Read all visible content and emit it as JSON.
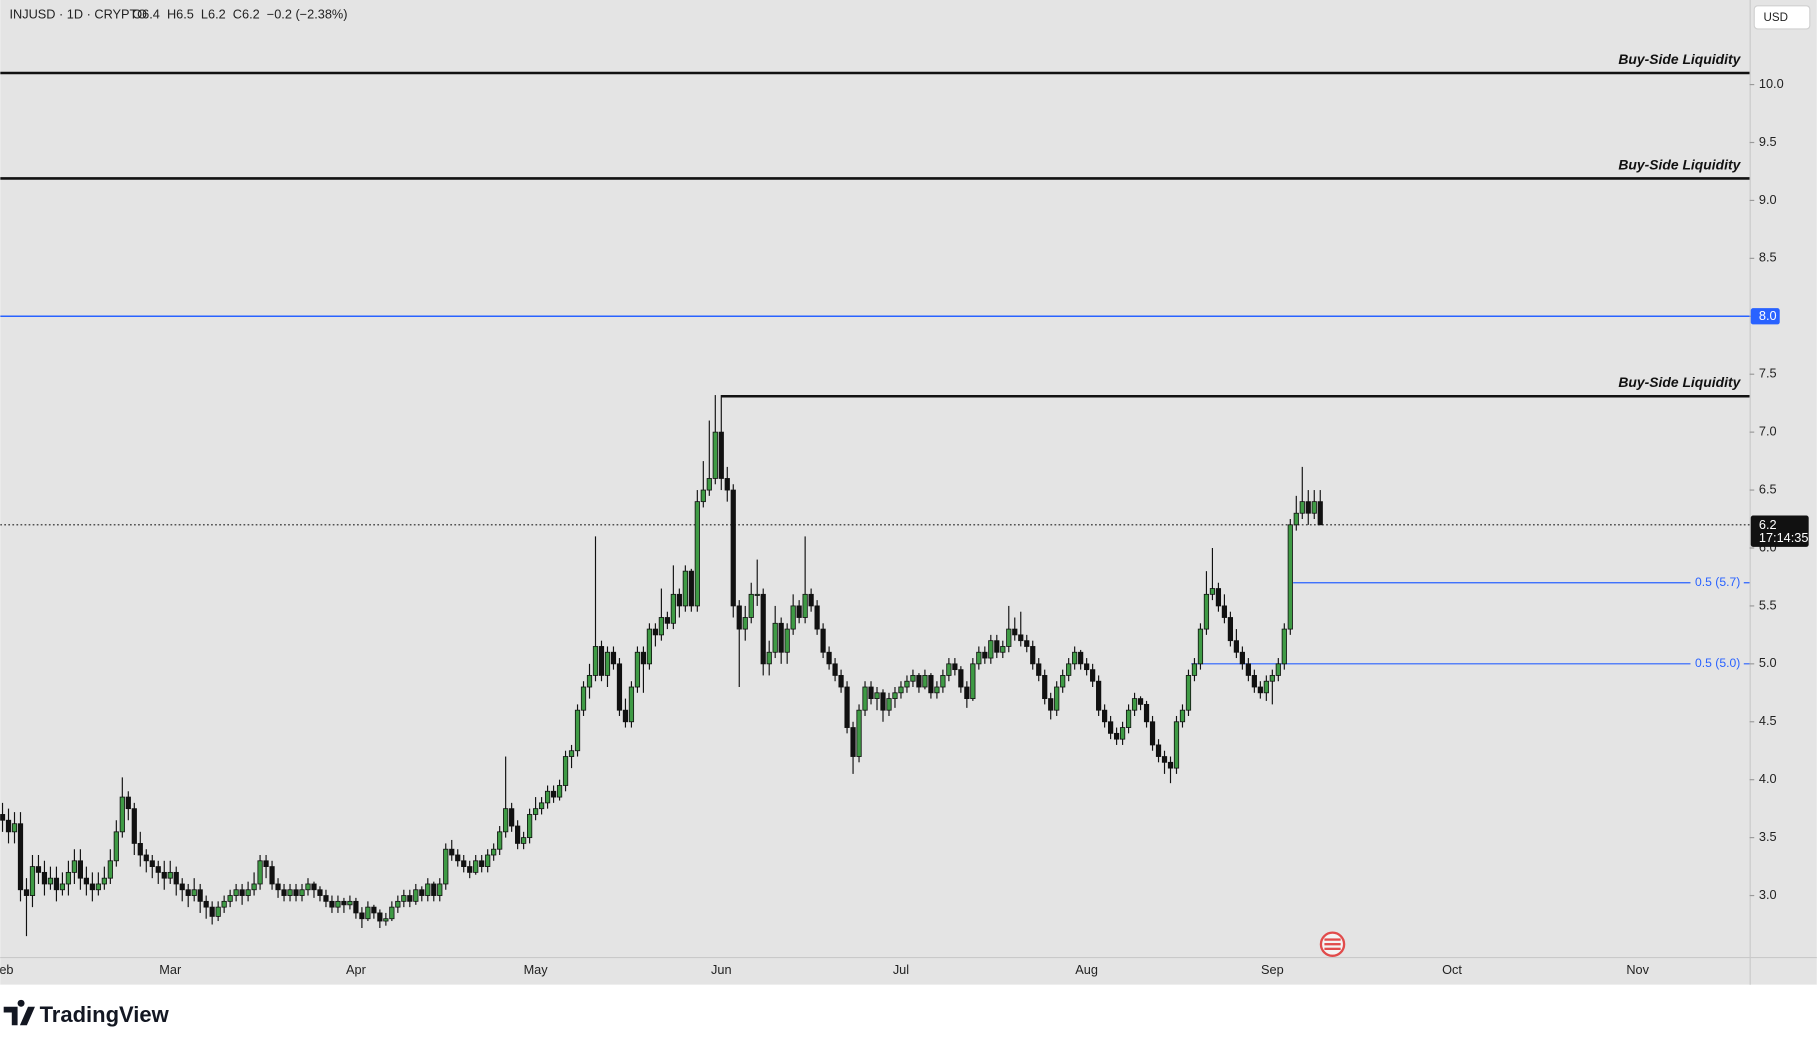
{
  "chart_data": {
    "type": "candlestick",
    "title": "INJUSD · 1D · CRYPTO",
    "subtitle": "O6.4  H6.5  L6.2  C6.2  −0.2 (−2.38%)",
    "currency": "USD",
    "up_color": "#3f9b45",
    "down_color": "#111111",
    "ylim": [
      2.47,
      10.73
    ],
    "yticks": [
      {
        "value": 3,
        "label": "3.0"
      },
      3.5,
      {
        "value": 4,
        "label": "4.0"
      },
      4.5,
      {
        "value": 5,
        "label": "5.0"
      },
      5.5,
      {
        "value": 6,
        "label": "6.0"
      },
      6.5,
      {
        "value": 7,
        "label": "7.0"
      },
      7.5,
      {
        "value": 8,
        "label": "8.0"
      },
      8.5,
      {
        "value": 9,
        "label": "9.0"
      },
      9.5,
      {
        "value": 10,
        "label": "10.0"
      }
    ],
    "xticks": [
      "Feb",
      "Mar",
      "Apr",
      "May",
      "Jun",
      "Jul",
      "Aug",
      "Sep",
      "Oct",
      "Nov"
    ],
    "levels": [
      {
        "label": "Buy-Side Liquidity",
        "value": 10.1
      },
      {
        "label": "Buy-Side Liquidity",
        "value": 9.19
      },
      {
        "label": "Buy-Side Liquidity",
        "value": 7.31
      }
    ],
    "fib_levels": [
      {
        "label": "0.5 (5.7)",
        "value": 5.7
      },
      {
        "label": "0.5 (5.0)",
        "value": 5.0
      }
    ],
    "alert_line": {
      "value": 8,
      "label": "8.0",
      "color": "#2962ff"
    },
    "last_price": {
      "value": 6.2,
      "label": "6.2",
      "countdown": "17:14:35"
    },
    "candles": [
      [
        3.7,
        3.8,
        3.55,
        3.65
      ],
      [
        3.65,
        3.75,
        3.45,
        3.55
      ],
      [
        3.55,
        3.72,
        3.45,
        3.62
      ],
      [
        3.62,
        3.72,
        2.95,
        3.05
      ],
      [
        3.05,
        3.15,
        2.65,
        3.0
      ],
      [
        3.0,
        3.35,
        2.9,
        3.25
      ],
      [
        3.25,
        3.35,
        3.1,
        3.2
      ],
      [
        3.2,
        3.3,
        3.0,
        3.1
      ],
      [
        3.1,
        3.25,
        3.05,
        3.15
      ],
      [
        3.15,
        3.25,
        2.95,
        3.05
      ],
      [
        3.05,
        3.2,
        3.0,
        3.1
      ],
      [
        3.1,
        3.3,
        3.0,
        3.2
      ],
      [
        3.2,
        3.4,
        3.1,
        3.3
      ],
      [
        3.3,
        3.4,
        3.05,
        3.15
      ],
      [
        3.15,
        3.25,
        3.0,
        3.1
      ],
      [
        3.1,
        3.2,
        2.95,
        3.05
      ],
      [
        3.05,
        3.2,
        3.0,
        3.1
      ],
      [
        3.1,
        3.25,
        3.05,
        3.15
      ],
      [
        3.15,
        3.4,
        3.1,
        3.3
      ],
      [
        3.3,
        3.65,
        3.25,
        3.55
      ],
      [
        3.55,
        4.02,
        3.5,
        3.85
      ],
      [
        3.85,
        3.9,
        3.65,
        3.75
      ],
      [
        3.75,
        3.8,
        3.35,
        3.45
      ],
      [
        3.45,
        3.55,
        3.25,
        3.35
      ],
      [
        3.35,
        3.4,
        3.2,
        3.3
      ],
      [
        3.3,
        3.35,
        3.15,
        3.25
      ],
      [
        3.25,
        3.3,
        3.1,
        3.2
      ],
      [
        3.2,
        3.3,
        3.05,
        3.15
      ],
      [
        3.15,
        3.3,
        3.1,
        3.2
      ],
      [
        3.2,
        3.25,
        3.0,
        3.1
      ],
      [
        3.1,
        3.15,
        2.95,
        3.05
      ],
      [
        3.05,
        3.1,
        2.9,
        3.0
      ],
      [
        3.0,
        3.15,
        2.95,
        3.05
      ],
      [
        3.05,
        3.1,
        2.85,
        2.95
      ],
      [
        2.95,
        3.0,
        2.8,
        2.9
      ],
      [
        2.9,
        2.95,
        2.75,
        2.82
      ],
      [
        2.82,
        2.95,
        2.78,
        2.9
      ],
      [
        2.9,
        3.0,
        2.85,
        2.95
      ],
      [
        2.95,
        3.05,
        2.9,
        3.0
      ],
      [
        3.0,
        3.1,
        2.95,
        3.05
      ],
      [
        3.05,
        3.1,
        2.92,
        3.0
      ],
      [
        3.0,
        3.12,
        2.95,
        3.05
      ],
      [
        3.05,
        3.2,
        3.0,
        3.1
      ],
      [
        3.1,
        3.35,
        3.05,
        3.3
      ],
      [
        3.3,
        3.35,
        3.15,
        3.25
      ],
      [
        3.25,
        3.3,
        3.05,
        3.1
      ],
      [
        3.1,
        3.15,
        2.98,
        3.05
      ],
      [
        3.05,
        3.1,
        2.95,
        3.0
      ],
      [
        3.0,
        3.1,
        2.95,
        3.05
      ],
      [
        3.05,
        3.1,
        2.95,
        3.0
      ],
      [
        3.0,
        3.1,
        2.95,
        3.05
      ],
      [
        3.05,
        3.15,
        3.0,
        3.1
      ],
      [
        3.1,
        3.12,
        2.98,
        3.05
      ],
      [
        3.05,
        3.08,
        2.95,
        3.0
      ],
      [
        3.0,
        3.05,
        2.9,
        2.95
      ],
      [
        2.95,
        3.0,
        2.85,
        2.9
      ],
      [
        2.9,
        3.0,
        2.85,
        2.95
      ],
      [
        2.95,
        2.98,
        2.85,
        2.92
      ],
      [
        2.92,
        3.0,
        2.88,
        2.95
      ],
      [
        2.95,
        2.98,
        2.8,
        2.85
      ],
      [
        2.85,
        2.9,
        2.72,
        2.8
      ],
      [
        2.8,
        2.95,
        2.78,
        2.9
      ],
      [
        2.9,
        2.92,
        2.8,
        2.85
      ],
      [
        2.85,
        2.88,
        2.72,
        2.78
      ],
      [
        2.78,
        2.85,
        2.74,
        2.8
      ],
      [
        2.8,
        2.95,
        2.78,
        2.9
      ],
      [
        2.9,
        3.0,
        2.85,
        2.95
      ],
      [
        2.95,
        3.05,
        2.9,
        3.0
      ],
      [
        3.0,
        3.05,
        2.9,
        2.95
      ],
      [
        2.95,
        3.1,
        2.92,
        3.05
      ],
      [
        3.05,
        3.08,
        2.95,
        3.0
      ],
      [
        3.0,
        3.15,
        2.95,
        3.1
      ],
      [
        3.1,
        3.12,
        2.95,
        3.0
      ],
      [
        3.0,
        3.15,
        2.95,
        3.1
      ],
      [
        3.1,
        3.45,
        3.05,
        3.4
      ],
      [
        3.4,
        3.48,
        3.3,
        3.35
      ],
      [
        3.35,
        3.4,
        3.25,
        3.3
      ],
      [
        3.3,
        3.35,
        3.2,
        3.25
      ],
      [
        3.25,
        3.3,
        3.15,
        3.2
      ],
      [
        3.2,
        3.35,
        3.18,
        3.3
      ],
      [
        3.3,
        3.35,
        3.2,
        3.25
      ],
      [
        3.25,
        3.4,
        3.2,
        3.35
      ],
      [
        3.35,
        3.45,
        3.3,
        3.4
      ],
      [
        3.4,
        3.6,
        3.35,
        3.55
      ],
      [
        3.55,
        4.2,
        3.5,
        3.75
      ],
      [
        3.75,
        3.8,
        3.55,
        3.6
      ],
      [
        3.6,
        3.65,
        3.4,
        3.45
      ],
      [
        3.45,
        3.55,
        3.4,
        3.5
      ],
      [
        3.5,
        3.75,
        3.45,
        3.7
      ],
      [
        3.7,
        3.85,
        3.65,
        3.75
      ],
      [
        3.75,
        3.85,
        3.7,
        3.8
      ],
      [
        3.8,
        3.95,
        3.75,
        3.9
      ],
      [
        3.9,
        3.95,
        3.8,
        3.85
      ],
      [
        3.85,
        4.0,
        3.82,
        3.95
      ],
      [
        3.95,
        4.25,
        3.9,
        4.2
      ],
      [
        4.2,
        4.3,
        4.1,
        4.25
      ],
      [
        4.25,
        4.65,
        4.2,
        4.6
      ],
      [
        4.6,
        4.85,
        4.55,
        4.8
      ],
      [
        4.8,
        5.0,
        4.7,
        4.9
      ],
      [
        4.9,
        6.1,
        4.85,
        5.15
      ],
      [
        5.15,
        5.2,
        4.85,
        4.9
      ],
      [
        4.9,
        5.15,
        4.8,
        5.1
      ],
      [
        5.1,
        5.15,
        4.95,
        5.0
      ],
      [
        5.0,
        5.05,
        4.55,
        4.6
      ],
      [
        4.6,
        4.7,
        4.45,
        4.5
      ],
      [
        4.5,
        4.85,
        4.45,
        4.8
      ],
      [
        4.8,
        5.15,
        4.75,
        5.1
      ],
      [
        5.1,
        5.15,
        4.75,
        5.0
      ],
      [
        5.0,
        5.35,
        4.95,
        5.3
      ],
      [
        5.3,
        5.35,
        5.15,
        5.25
      ],
      [
        5.25,
        5.65,
        5.2,
        5.4
      ],
      [
        5.4,
        5.45,
        5.3,
        5.35
      ],
      [
        5.35,
        5.85,
        5.3,
        5.6
      ],
      [
        5.6,
        5.65,
        5.4,
        5.5
      ],
      [
        5.5,
        5.85,
        5.45,
        5.8
      ],
      [
        5.8,
        5.82,
        5.45,
        5.5
      ],
      [
        5.5,
        6.5,
        5.45,
        6.4
      ],
      [
        6.4,
        6.75,
        6.35,
        6.5
      ],
      [
        6.5,
        7.1,
        6.45,
        6.6
      ],
      [
        6.6,
        7.32,
        6.55,
        7.0
      ],
      [
        7.0,
        7.32,
        6.5,
        6.6
      ],
      [
        6.6,
        6.7,
        6.4,
        6.5
      ],
      [
        6.5,
        6.55,
        5.4,
        5.5
      ],
      [
        5.5,
        5.55,
        4.8,
        5.3
      ],
      [
        5.3,
        5.5,
        5.2,
        5.4
      ],
      [
        5.4,
        5.7,
        5.35,
        5.6
      ],
      [
        5.6,
        5.9,
        5.5,
        5.6
      ],
      [
        5.6,
        5.65,
        4.9,
        5.0
      ],
      [
        5.0,
        5.2,
        4.9,
        5.1
      ],
      [
        5.1,
        5.5,
        5.05,
        5.35
      ],
      [
        5.35,
        5.4,
        5.0,
        5.1
      ],
      [
        5.1,
        5.35,
        5.0,
        5.3
      ],
      [
        5.3,
        5.6,
        5.25,
        5.5
      ],
      [
        5.5,
        5.55,
        5.35,
        5.4
      ],
      [
        5.4,
        6.1,
        5.35,
        5.6
      ],
      [
        5.6,
        5.65,
        5.45,
        5.5
      ],
      [
        5.5,
        5.55,
        5.25,
        5.3
      ],
      [
        5.3,
        5.35,
        5.05,
        5.1
      ],
      [
        5.1,
        5.15,
        4.95,
        5.0
      ],
      [
        5.0,
        5.05,
        4.85,
        4.9
      ],
      [
        4.9,
        4.95,
        4.75,
        4.8
      ],
      [
        4.8,
        4.85,
        4.4,
        4.45
      ],
      [
        4.45,
        4.5,
        4.05,
        4.2
      ],
      [
        4.2,
        4.65,
        4.15,
        4.6
      ],
      [
        4.6,
        4.85,
        4.55,
        4.8
      ],
      [
        4.8,
        4.85,
        4.65,
        4.7
      ],
      [
        4.7,
        4.8,
        4.6,
        4.75
      ],
      [
        4.75,
        4.78,
        4.5,
        4.6
      ],
      [
        4.6,
        4.75,
        4.55,
        4.7
      ],
      [
        4.7,
        4.8,
        4.62,
        4.75
      ],
      [
        4.75,
        4.85,
        4.7,
        4.8
      ],
      [
        4.8,
        4.9,
        4.75,
        4.85
      ],
      [
        4.85,
        4.95,
        4.8,
        4.9
      ],
      [
        4.9,
        4.92,
        4.75,
        4.8
      ],
      [
        4.8,
        4.95,
        4.78,
        4.9
      ],
      [
        4.9,
        4.92,
        4.7,
        4.75
      ],
      [
        4.75,
        4.85,
        4.7,
        4.8
      ],
      [
        4.8,
        4.95,
        4.75,
        4.9
      ],
      [
        4.9,
        5.05,
        4.85,
        5.0
      ],
      [
        5.0,
        5.05,
        4.9,
        4.95
      ],
      [
        4.95,
        4.98,
        4.75,
        4.8
      ],
      [
        4.8,
        4.85,
        4.62,
        4.7
      ],
      [
        4.7,
        5.05,
        4.68,
        5.0
      ],
      [
        5.0,
        5.15,
        4.95,
        5.1
      ],
      [
        5.1,
        5.15,
        5.0,
        5.05
      ],
      [
        5.05,
        5.25,
        5.0,
        5.2
      ],
      [
        5.2,
        5.25,
        5.05,
        5.1
      ],
      [
        5.1,
        5.2,
        5.05,
        5.15
      ],
      [
        5.15,
        5.5,
        5.1,
        5.3
      ],
      [
        5.3,
        5.4,
        5.2,
        5.25
      ],
      [
        5.25,
        5.45,
        5.15,
        5.2
      ],
      [
        5.2,
        5.25,
        5.1,
        5.15
      ],
      [
        5.15,
        5.2,
        4.95,
        5.0
      ],
      [
        5.0,
        5.05,
        4.85,
        4.9
      ],
      [
        4.9,
        4.95,
        4.65,
        4.7
      ],
      [
        4.7,
        4.75,
        4.52,
        4.6
      ],
      [
        4.6,
        4.85,
        4.55,
        4.8
      ],
      [
        4.8,
        4.95,
        4.75,
        4.9
      ],
      [
        4.9,
        5.05,
        4.85,
        5.0
      ],
      [
        5.0,
        5.15,
        4.95,
        5.1
      ],
      [
        5.1,
        5.12,
        4.95,
        5.0
      ],
      [
        5.0,
        5.05,
        4.9,
        4.95
      ],
      [
        4.95,
        5.0,
        4.8,
        4.85
      ],
      [
        4.85,
        4.9,
        4.55,
        4.6
      ],
      [
        4.6,
        4.65,
        4.45,
        4.5
      ],
      [
        4.5,
        4.55,
        4.35,
        4.4
      ],
      [
        4.4,
        4.45,
        4.3,
        4.35
      ],
      [
        4.35,
        4.5,
        4.3,
        4.45
      ],
      [
        4.45,
        4.65,
        4.4,
        4.6
      ],
      [
        4.6,
        4.75,
        4.55,
        4.7
      ],
      [
        4.7,
        4.72,
        4.6,
        4.65
      ],
      [
        4.65,
        4.68,
        4.45,
        4.5
      ],
      [
        4.5,
        4.55,
        4.25,
        4.3
      ],
      [
        4.3,
        4.35,
        4.15,
        4.2
      ],
      [
        4.2,
        4.25,
        4.05,
        4.15
      ],
      [
        4.15,
        4.2,
        3.97,
        4.1
      ],
      [
        4.1,
        4.55,
        4.05,
        4.5
      ],
      [
        4.5,
        4.65,
        4.45,
        4.6
      ],
      [
        4.6,
        4.95,
        4.55,
        4.9
      ],
      [
        4.9,
        5.05,
        4.85,
        5.0
      ],
      [
        5.0,
        5.35,
        4.95,
        5.3
      ],
      [
        5.3,
        5.8,
        5.25,
        5.6
      ],
      [
        5.6,
        6.0,
        5.55,
        5.65
      ],
      [
        5.65,
        5.7,
        5.45,
        5.5
      ],
      [
        5.5,
        5.6,
        5.35,
        5.4
      ],
      [
        5.4,
        5.45,
        5.15,
        5.2
      ],
      [
        5.2,
        5.3,
        5.05,
        5.1
      ],
      [
        5.1,
        5.15,
        4.95,
        5.0
      ],
      [
        5.0,
        5.05,
        4.85,
        4.9
      ],
      [
        4.9,
        4.95,
        4.75,
        4.8
      ],
      [
        4.8,
        4.85,
        4.7,
        4.75
      ],
      [
        4.75,
        4.9,
        4.68,
        4.85
      ],
      [
        4.85,
        4.95,
        4.65,
        4.9
      ],
      [
        4.9,
        5.05,
        4.85,
        5.0
      ],
      [
        5.0,
        5.35,
        4.95,
        5.3
      ],
      [
        5.3,
        6.25,
        5.25,
        6.2
      ],
      [
        6.2,
        6.45,
        6.15,
        6.3
      ],
      [
        6.3,
        6.7,
        6.25,
        6.4
      ],
      [
        6.4,
        6.5,
        6.2,
        6.3
      ],
      [
        6.3,
        6.5,
        6.25,
        6.4
      ],
      [
        6.4,
        6.5,
        6.2,
        6.2
      ]
    ]
  },
  "branding": "TradingView"
}
